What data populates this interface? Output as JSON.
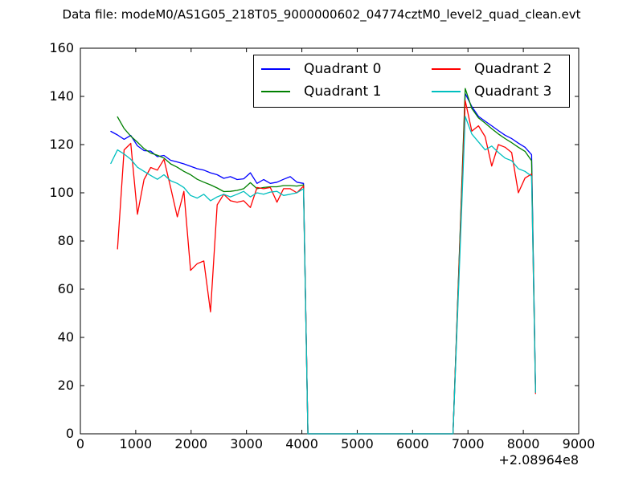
{
  "chart_data": {
    "type": "line",
    "title": "Data file: modeM0/AS1G05_218T05_9000000602_04774cztM0_level2_quad_clean.evt",
    "xlabel": "",
    "ylabel": "",
    "xlim": [
      0,
      9000
    ],
    "ylim": [
      0,
      160
    ],
    "x_ticks": [
      0,
      1000,
      2000,
      3000,
      4000,
      5000,
      6000,
      7000,
      8000,
      9000
    ],
    "y_ticks": [
      0,
      20,
      40,
      60,
      80,
      100,
      120,
      140,
      160
    ],
    "x_offset_label": "+2.08964e8",
    "grid": false,
    "legend_position": "upper center, 2 columns, framed",
    "tick_direction": "in",
    "series": [
      {
        "name": "Quadrant 0",
        "color": "#0000ff",
        "points": [
          [
            550,
            125.5
          ],
          [
            670,
            124
          ],
          [
            790,
            122.2
          ],
          [
            910,
            123.8
          ],
          [
            1030,
            119.5
          ],
          [
            1150,
            117.5
          ],
          [
            1270,
            117.3
          ],
          [
            1390,
            115
          ],
          [
            1510,
            115.5
          ],
          [
            1630,
            113.5
          ],
          [
            1750,
            112.8
          ],
          [
            1870,
            112
          ],
          [
            1990,
            111
          ],
          [
            2110,
            110
          ],
          [
            2230,
            109.4
          ],
          [
            2350,
            108.3
          ],
          [
            2470,
            107.5
          ],
          [
            2590,
            106
          ],
          [
            2710,
            106.7
          ],
          [
            2830,
            105.5
          ],
          [
            2950,
            105.8
          ],
          [
            3070,
            108.3
          ],
          [
            3190,
            103.9
          ],
          [
            3310,
            105.5
          ],
          [
            3430,
            103.9
          ],
          [
            3550,
            104.4
          ],
          [
            3670,
            105.6
          ],
          [
            3790,
            106.7
          ],
          [
            3910,
            104.4
          ],
          [
            4030,
            103.9
          ],
          [
            4110,
            0
          ],
          [
            6730,
            0
          ],
          [
            6950,
            141.2
          ],
          [
            7070,
            135.8
          ],
          [
            7190,
            131.7
          ],
          [
            7310,
            129.7
          ],
          [
            7430,
            127.8
          ],
          [
            7550,
            125.8
          ],
          [
            7670,
            123.9
          ],
          [
            7790,
            122.5
          ],
          [
            7910,
            120.6
          ],
          [
            8030,
            118.9
          ],
          [
            8150,
            115.8
          ],
          [
            8220,
            17.5
          ]
        ]
      },
      {
        "name": "Quadrant 1",
        "color": "#008000",
        "points": [
          [
            670,
            131.5
          ],
          [
            790,
            126.7
          ],
          [
            910,
            123.5
          ],
          [
            1030,
            121
          ],
          [
            1150,
            118.3
          ],
          [
            1270,
            116.5
          ],
          [
            1390,
            115.6
          ],
          [
            1510,
            114.4
          ],
          [
            1630,
            112
          ],
          [
            1750,
            110.6
          ],
          [
            1870,
            108.9
          ],
          [
            1990,
            107.5
          ],
          [
            2110,
            105.6
          ],
          [
            2230,
            104.4
          ],
          [
            2350,
            103.3
          ],
          [
            2470,
            102
          ],
          [
            2590,
            100.5
          ],
          [
            2710,
            100.6
          ],
          [
            2830,
            101
          ],
          [
            2950,
            101.7
          ],
          [
            3070,
            104.2
          ],
          [
            3190,
            101.7
          ],
          [
            3310,
            102.2
          ],
          [
            3430,
            102.5
          ],
          [
            3550,
            102.5
          ],
          [
            3670,
            103
          ],
          [
            3790,
            103
          ],
          [
            3910,
            102.8
          ],
          [
            4030,
            103.3
          ],
          [
            4110,
            0
          ],
          [
            6730,
            0
          ],
          [
            6950,
            143.3
          ],
          [
            7070,
            135
          ],
          [
            7190,
            131.1
          ],
          [
            7310,
            128.9
          ],
          [
            7430,
            126.6
          ],
          [
            7550,
            124.4
          ],
          [
            7670,
            122.5
          ],
          [
            7790,
            120.8
          ],
          [
            7910,
            118.9
          ],
          [
            8030,
            117.2
          ],
          [
            8150,
            113.3
          ],
          [
            8220,
            17.5
          ]
        ]
      },
      {
        "name": "Quadrant 2",
        "color": "#ff0000",
        "points": [
          [
            670,
            76.7
          ],
          [
            790,
            117.8
          ],
          [
            910,
            120.5
          ],
          [
            1030,
            91.1
          ],
          [
            1150,
            105.5
          ],
          [
            1270,
            110.5
          ],
          [
            1390,
            109.4
          ],
          [
            1510,
            113.9
          ],
          [
            1630,
            102.2
          ],
          [
            1750,
            90
          ],
          [
            1870,
            100.6
          ],
          [
            1990,
            67.8
          ],
          [
            2110,
            70.6
          ],
          [
            2230,
            71.7
          ],
          [
            2350,
            50.6
          ],
          [
            2470,
            95
          ],
          [
            2590,
            99.4
          ],
          [
            2710,
            96.7
          ],
          [
            2830,
            96.1
          ],
          [
            2950,
            96.7
          ],
          [
            3070,
            93.9
          ],
          [
            3190,
            102.2
          ],
          [
            3310,
            101.7
          ],
          [
            3430,
            102.2
          ],
          [
            3550,
            96.1
          ],
          [
            3670,
            101.7
          ],
          [
            3790,
            101.7
          ],
          [
            3910,
            100
          ],
          [
            4030,
            102.8
          ],
          [
            4110,
            0
          ],
          [
            6730,
            0
          ],
          [
            6950,
            138.3
          ],
          [
            7070,
            125.6
          ],
          [
            7190,
            127.8
          ],
          [
            7310,
            123.3
          ],
          [
            7430,
            111.1
          ],
          [
            7550,
            120
          ],
          [
            7670,
            118.9
          ],
          [
            7790,
            116.7
          ],
          [
            7910,
            100
          ],
          [
            8030,
            106.1
          ],
          [
            8150,
            107.8
          ],
          [
            8220,
            16.7
          ]
        ]
      },
      {
        "name": "Quadrant 3",
        "color": "#00bfbf",
        "points": [
          [
            550,
            112.2
          ],
          [
            670,
            117.8
          ],
          [
            790,
            116.1
          ],
          [
            910,
            113.9
          ],
          [
            1030,
            110.6
          ],
          [
            1150,
            108.9
          ],
          [
            1270,
            107.2
          ],
          [
            1390,
            105.6
          ],
          [
            1510,
            107.5
          ],
          [
            1630,
            105
          ],
          [
            1750,
            103.9
          ],
          [
            1870,
            102.2
          ],
          [
            1990,
            98.9
          ],
          [
            2110,
            97.8
          ],
          [
            2230,
            99.4
          ],
          [
            2350,
            96.7
          ],
          [
            2470,
            98.3
          ],
          [
            2590,
            99.4
          ],
          [
            2710,
            98.3
          ],
          [
            2830,
            99.4
          ],
          [
            2950,
            100.6
          ],
          [
            3070,
            98.3
          ],
          [
            3190,
            100
          ],
          [
            3310,
            99.4
          ],
          [
            3430,
            100.3
          ],
          [
            3550,
            100.6
          ],
          [
            3670,
            98.9
          ],
          [
            3790,
            99.4
          ],
          [
            3910,
            100
          ],
          [
            4030,
            101.7
          ],
          [
            4110,
            0
          ],
          [
            6730,
            0
          ],
          [
            6950,
            131.7
          ],
          [
            7070,
            124.4
          ],
          [
            7190,
            121.1
          ],
          [
            7310,
            117.8
          ],
          [
            7430,
            119.4
          ],
          [
            7550,
            116.7
          ],
          [
            7670,
            114.4
          ],
          [
            7790,
            113.3
          ],
          [
            7910,
            110
          ],
          [
            8030,
            108.9
          ],
          [
            8150,
            106.9
          ],
          [
            8220,
            17.2
          ]
        ]
      }
    ]
  }
}
